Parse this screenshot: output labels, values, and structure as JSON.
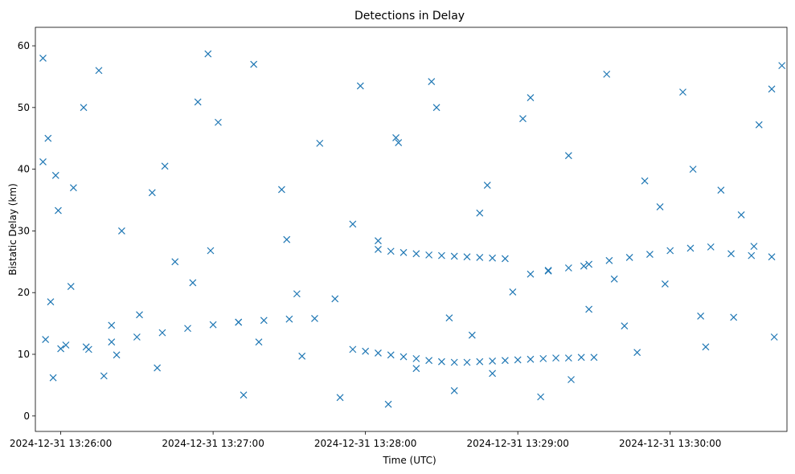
{
  "chart_data": {
    "type": "scatter",
    "title": "Detections in Delay",
    "xlabel": "Time (UTC)",
    "ylabel": "Bistatic Delay (km)",
    "x_unit": "seconds after 13:25:00",
    "x_ticks": [
      {
        "t": 60,
        "label": "2024-12-31 13:26:00"
      },
      {
        "t": 120,
        "label": "2024-12-31 13:27:00"
      },
      {
        "t": 180,
        "label": "2024-12-31 13:28:00"
      },
      {
        "t": 240,
        "label": "2024-12-31 13:29:00"
      },
      {
        "t": 300,
        "label": "2024-12-31 13:30:00"
      }
    ],
    "y_ticks": [
      0,
      10,
      20,
      30,
      40,
      50,
      60
    ],
    "xlim": [
      "2024-12-31 13:25:50",
      "2024-12-31 13:30:46"
    ],
    "ylim": [
      -2.5,
      63
    ],
    "marker": "x",
    "color": "#1f77b4",
    "grid": false,
    "legend": "none",
    "series": [
      {
        "x": [
          "2024-12-31 13:25:53",
          "2024-12-31 13:25:53",
          "2024-12-31 13:25:56",
          "2024-12-31 13:25:54",
          "2024-12-31 13:25:57",
          "2024-12-31 13:25:58",
          "2024-12-31 13:26:02",
          "2024-12-31 13:26:05",
          "2024-12-31 13:26:11",
          "2024-12-31 13:26:15",
          "2024-12-31 13:26:20",
          "2024-12-31 13:26:24",
          "2024-12-31 13:26:31",
          "2024-12-31 13:26:38",
          "2024-12-31 13:26:45",
          "2024-12-31 13:26:52",
          "2024-12-31 13:26:58",
          "2024-12-31 13:27:02",
          "2024-12-31 13:27:10",
          "2024-12-31 13:27:18",
          "2024-12-31 13:27:27",
          "2024-12-31 13:27:35",
          "2024-12-31 13:27:42",
          "2024-12-31 13:27:50",
          "2024-12-31 13:27:58",
          "2024-12-31 13:28:05",
          "2024-12-31 13:28:12",
          "2024-12-31 13:28:20",
          "2024-12-31 13:28:28",
          "2024-12-31 13:28:35",
          "2024-12-31 13:28:42",
          "2024-12-31 13:28:50",
          "2024-12-31 13:28:58",
          "2024-12-31 13:29:05",
          "2024-12-31 13:29:12",
          "2024-12-31 13:29:20",
          "2024-12-31 13:29:28",
          "2024-12-31 13:29:35",
          "2024-12-31 13:29:42",
          "2024-12-31 13:29:50",
          "2024-12-31 13:29:58",
          "2024-12-31 13:30:05",
          "2024-12-31 13:30:12",
          "2024-12-31 13:30:20",
          "2024-12-31 13:30:28",
          "2024-12-31 13:30:35",
          "2024-12-31 13:30:41",
          "2024-12-31 13:30:44",
          "2024-12-31 13:25:59",
          "2024-12-31 13:26:09",
          "2024-12-31 13:26:22",
          "2024-12-31 13:26:41",
          "2024-12-31 13:26:59",
          "2024-12-31 13:27:16",
          "2024-12-31 13:27:33",
          "2024-12-31 13:27:55",
          "2024-12-31 13:28:13",
          "2024-12-31 13:28:33",
          "2024-12-31 13:28:48",
          "2024-12-31 13:29:02",
          "2024-12-31 13:29:21",
          "2024-12-31 13:29:38",
          "2024-12-31 13:29:56",
          "2024-12-31 13:30:14",
          "2024-12-31 13:30:33",
          "2024-12-31 13:25:55",
          "2024-12-31 13:26:04",
          "2024-12-31 13:26:17",
          "2024-12-31 13:26:36",
          "2024-12-31 13:26:54",
          "2024-12-31 13:27:12",
          "2024-12-31 13:27:29",
          "2024-12-31 13:27:48",
          "2024-12-31 13:28:09",
          "2024-12-31 13:28:26",
          "2024-12-31 13:28:45",
          "2024-12-31 13:29:09",
          "2024-12-31 13:29:26",
          "2024-12-31 13:29:47",
          "2024-12-31 13:30:09",
          "2024-12-31 13:30:25",
          "2024-12-31 13:30:40"
        ],
        "y": [
          58.0,
          41.2,
          18.5,
          12.4,
          6.2,
          39.0,
          11.5,
          37.0,
          10.8,
          56.0,
          14.7,
          30.0,
          16.4,
          7.8,
          25.0,
          21.6,
          58.7,
          47.6,
          15.2,
          12.0,
          36.7,
          9.7,
          44.2,
          3.0,
          53.5,
          28.4,
          45.1,
          7.7,
          50.0,
          4.1,
          13.1,
          6.9,
          20.1,
          51.6,
          23.6,
          42.2,
          17.3,
          55.4,
          14.6,
          38.1,
          21.4,
          52.5,
          16.2,
          36.6,
          32.6,
          47.2,
          12.8,
          56.8,
          33.3,
          50.0,
          9.9,
          40.5,
          26.8,
          57.0,
          19.8,
          31.1,
          44.3,
          15.9,
          37.4,
          48.2,
          5.9,
          22.2,
          33.9,
          11.2,
          27.5,
          45.0,
          21.0,
          6.5,
          36.2,
          50.9,
          3.4,
          28.6,
          19.0,
          1.9,
          54.2,
          32.9,
          3.1,
          24.3,
          10.3,
          40.0,
          16.0,
          53.0
        ]
      },
      {
        "x": [
          "2024-12-31 13:28:05",
          "2024-12-31 13:28:10",
          "2024-12-31 13:28:15",
          "2024-12-31 13:28:20",
          "2024-12-31 13:28:25",
          "2024-12-31 13:28:30",
          "2024-12-31 13:28:35",
          "2024-12-31 13:28:40",
          "2024-12-31 13:28:45",
          "2024-12-31 13:28:50",
          "2024-12-31 13:28:55"
        ],
        "y": [
          27.0,
          26.7,
          26.5,
          26.3,
          26.1,
          26.0,
          25.9,
          25.8,
          25.7,
          25.6,
          25.5
        ]
      },
      {
        "x": [
          "2024-12-31 13:29:05",
          "2024-12-31 13:29:12",
          "2024-12-31 13:29:20",
          "2024-12-31 13:29:28",
          "2024-12-31 13:29:36",
          "2024-12-31 13:29:44",
          "2024-12-31 13:29:52",
          "2024-12-31 13:30:00",
          "2024-12-31 13:30:08",
          "2024-12-31 13:30:16",
          "2024-12-31 13:30:24",
          "2024-12-31 13:30:32",
          "2024-12-31 13:30:40"
        ],
        "y": [
          23.0,
          23.5,
          24.0,
          24.6,
          25.2,
          25.7,
          26.2,
          26.8,
          27.2,
          27.4,
          26.3,
          26.0,
          25.8
        ]
      },
      {
        "x": [
          "2024-12-31 13:27:55",
          "2024-12-31 13:28:00",
          "2024-12-31 13:28:05",
          "2024-12-31 13:28:10",
          "2024-12-31 13:28:15",
          "2024-12-31 13:28:20",
          "2024-12-31 13:28:25",
          "2024-12-31 13:28:30",
          "2024-12-31 13:28:35",
          "2024-12-31 13:28:40",
          "2024-12-31 13:28:45",
          "2024-12-31 13:28:50",
          "2024-12-31 13:28:55",
          "2024-12-31 13:29:00",
          "2024-12-31 13:29:05",
          "2024-12-31 13:29:10",
          "2024-12-31 13:29:15",
          "2024-12-31 13:29:20",
          "2024-12-31 13:29:25",
          "2024-12-31 13:29:30"
        ],
        "y": [
          10.8,
          10.5,
          10.2,
          9.9,
          9.6,
          9.3,
          9.0,
          8.8,
          8.7,
          8.7,
          8.8,
          8.9,
          9.0,
          9.1,
          9.2,
          9.3,
          9.4,
          9.4,
          9.5,
          9.5
        ]
      },
      {
        "x": [
          "2024-12-31 13:26:00",
          "2024-12-31 13:26:10",
          "2024-12-31 13:26:20",
          "2024-12-31 13:26:30",
          "2024-12-31 13:26:40",
          "2024-12-31 13:26:50",
          "2024-12-31 13:27:00",
          "2024-12-31 13:27:10",
          "2024-12-31 13:27:20",
          "2024-12-31 13:27:30",
          "2024-12-31 13:27:40"
        ],
        "y": [
          10.9,
          11.2,
          12.0,
          12.8,
          13.5,
          14.2,
          14.8,
          15.2,
          15.5,
          15.7,
          15.8
        ]
      }
    ]
  }
}
